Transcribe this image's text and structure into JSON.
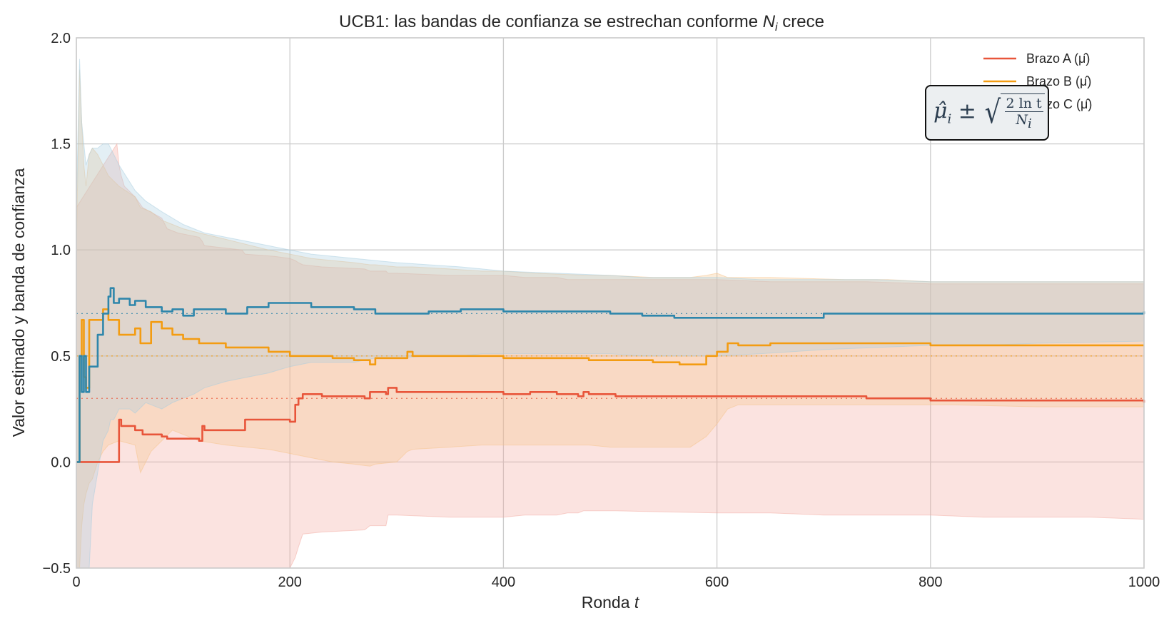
{
  "chart_data": {
    "type": "line",
    "title": "UCB1: las bandas de confianza se estrechan conforme N_i crece",
    "title_parts": {
      "prefix": "UCB1: las bandas de confianza se estrechan conforme ",
      "var": "N",
      "sub": "i",
      "suffix": " crece"
    },
    "xlabel": "Ronda t",
    "xlabel_parts": {
      "prefix": "Ronda ",
      "var": "t"
    },
    "ylabel": "Valor estimado y banda de confianza",
    "xlim": [
      0,
      1000
    ],
    "ylim": [
      -0.5,
      2.0
    ],
    "xticks": [
      "0",
      "200",
      "400",
      "600",
      "800",
      "1000"
    ],
    "yticks": [
      "−0.5",
      "0.0",
      "0.5",
      "1.0",
      "1.5",
      "2.0"
    ],
    "grid": true,
    "legend_position": "upper right",
    "annotation": "μ̂_i ± sqrt(2 ln t / N_i)",
    "true_means": [
      {
        "name": "Brazo A",
        "value": 0.3,
        "color": "#e8553a"
      },
      {
        "name": "Brazo B",
        "value": 0.5,
        "color": "#f39c12"
      },
      {
        "name": "Brazo C",
        "value": 0.7,
        "color": "#2e86ab"
      }
    ],
    "series": [
      {
        "name": "Brazo A (μ̂)",
        "color": "#e8553a",
        "band_color": "#f4a9a0",
        "x": [
          0,
          38,
          40,
          42,
          45,
          55,
          62,
          80,
          85,
          95,
          115,
          118,
          120,
          155,
          158,
          185,
          200,
          205,
          208,
          212,
          230,
          270,
          275,
          290,
          292,
          300,
          350,
          400,
          420,
          425,
          450,
          460,
          470,
          475,
          480,
          505,
          600,
          650,
          700,
          740,
          800,
          850,
          900,
          950,
          1000
        ],
        "values": [
          0.0,
          0.0,
          0.2,
          0.17,
          0.17,
          0.15,
          0.13,
          0.12,
          0.11,
          0.11,
          0.1,
          0.17,
          0.15,
          0.15,
          0.2,
          0.2,
          0.19,
          0.27,
          0.3,
          0.32,
          0.31,
          0.3,
          0.33,
          0.32,
          0.35,
          0.33,
          0.33,
          0.32,
          0.32,
          0.33,
          0.32,
          0.32,
          0.31,
          0.33,
          0.32,
          0.31,
          0.31,
          0.31,
          0.31,
          0.3,
          0.29,
          0.29,
          0.29,
          0.29,
          0.28
        ],
        "upper": [
          1.2,
          1.5,
          1.4,
          1.35,
          1.3,
          1.25,
          1.2,
          1.15,
          1.1,
          1.08,
          1.06,
          1.04,
          1.02,
          1.0,
          0.98,
          0.97,
          0.96,
          0.95,
          0.94,
          0.93,
          0.92,
          0.91,
          0.9,
          0.9,
          0.89,
          0.89,
          0.88,
          0.88,
          0.87,
          0.87,
          0.87,
          0.86,
          0.86,
          0.86,
          0.86,
          0.86,
          0.86,
          0.85,
          0.85,
          0.85,
          0.84,
          0.84,
          0.84,
          0.84,
          0.84
        ],
        "lower": [
          -0.5,
          -0.5,
          -0.5,
          -0.5,
          -0.5,
          -0.5,
          -0.5,
          -0.5,
          -0.5,
          -0.5,
          -0.5,
          -0.5,
          -0.5,
          -0.5,
          -0.5,
          -0.5,
          -0.5,
          -0.45,
          -0.4,
          -0.34,
          -0.33,
          -0.32,
          -0.3,
          -0.3,
          -0.25,
          -0.25,
          -0.26,
          -0.26,
          -0.25,
          -0.25,
          -0.25,
          -0.24,
          -0.24,
          -0.23,
          -0.23,
          -0.23,
          -0.24,
          -0.24,
          -0.25,
          -0.25,
          -0.25,
          -0.26,
          -0.26,
          -0.26,
          -0.27
        ]
      },
      {
        "name": "Brazo B (μ̂)",
        "color": "#f39c12",
        "band_color": "#f7c48a",
        "x": [
          0,
          3,
          5,
          7,
          9,
          12,
          15,
          20,
          25,
          30,
          40,
          55,
          60,
          70,
          80,
          90,
          100,
          115,
          140,
          180,
          200,
          220,
          240,
          260,
          275,
          280,
          300,
          310,
          315,
          350,
          380,
          400,
          430,
          480,
          500,
          540,
          565,
          575,
          590,
          600,
          610,
          620,
          650,
          720,
          740,
          760,
          800,
          820,
          900,
          1000
        ],
        "values": [
          0.0,
          0.5,
          0.67,
          0.4,
          0.35,
          0.67,
          0.67,
          0.67,
          0.72,
          0.67,
          0.6,
          0.63,
          0.56,
          0.66,
          0.63,
          0.6,
          0.58,
          0.56,
          0.54,
          0.52,
          0.5,
          0.5,
          0.49,
          0.48,
          0.46,
          0.49,
          0.49,
          0.52,
          0.5,
          0.5,
          0.5,
          0.49,
          0.49,
          0.48,
          0.48,
          0.47,
          0.46,
          0.46,
          0.5,
          0.52,
          0.56,
          0.55,
          0.56,
          0.56,
          0.56,
          0.56,
          0.55,
          0.55,
          0.55,
          0.55
        ],
        "upper": [
          1.0,
          1.85,
          1.6,
          1.4,
          1.3,
          1.45,
          1.48,
          1.45,
          1.4,
          1.35,
          1.3,
          1.25,
          1.2,
          1.18,
          1.14,
          1.12,
          1.1,
          1.08,
          1.05,
          1.0,
          0.98,
          0.96,
          0.95,
          0.94,
          0.93,
          0.93,
          0.92,
          0.92,
          0.92,
          0.91,
          0.9,
          0.9,
          0.89,
          0.88,
          0.88,
          0.87,
          0.87,
          0.87,
          0.88,
          0.89,
          0.87,
          0.87,
          0.87,
          0.86,
          0.86,
          0.86,
          0.85,
          0.85,
          0.85,
          0.85
        ],
        "lower": [
          -0.5,
          -0.5,
          -0.3,
          -0.2,
          -0.15,
          -0.1,
          -0.08,
          0.0,
          0.05,
          0.08,
          0.1,
          0.08,
          -0.05,
          0.05,
          0.1,
          0.15,
          0.13,
          0.1,
          0.08,
          0.06,
          0.04,
          0.02,
          0.0,
          -0.01,
          -0.02,
          -0.01,
          0.0,
          0.05,
          0.06,
          0.07,
          0.08,
          0.08,
          0.08,
          0.08,
          0.07,
          0.07,
          0.07,
          0.07,
          0.12,
          0.18,
          0.25,
          0.27,
          0.27,
          0.27,
          0.27,
          0.27,
          0.27,
          0.27,
          0.26,
          0.26
        ]
      },
      {
        "name": "Brazo C (μ̂)",
        "color": "#2e86ab",
        "band_color": "#a8cde0",
        "x": [
          0,
          3,
          5,
          7,
          9,
          12,
          15,
          20,
          25,
          30,
          32,
          35,
          40,
          50,
          55,
          65,
          80,
          90,
          100,
          110,
          120,
          140,
          160,
          180,
          200,
          220,
          260,
          280,
          300,
          330,
          360,
          380,
          400,
          450,
          500,
          530,
          560,
          600,
          640,
          700,
          750,
          800,
          850,
          900,
          1000
        ],
        "values": [
          0.0,
          0.5,
          0.33,
          0.5,
          0.33,
          0.45,
          0.45,
          0.6,
          0.7,
          0.78,
          0.82,
          0.75,
          0.77,
          0.74,
          0.76,
          0.73,
          0.71,
          0.72,
          0.69,
          0.72,
          0.72,
          0.7,
          0.73,
          0.75,
          0.75,
          0.73,
          0.72,
          0.7,
          0.7,
          0.71,
          0.72,
          0.72,
          0.71,
          0.71,
          0.7,
          0.69,
          0.68,
          0.68,
          0.68,
          0.7,
          0.7,
          0.7,
          0.7,
          0.7,
          0.71
        ],
        "upper": [
          1.2,
          1.9,
          1.6,
          1.5,
          1.4,
          1.45,
          1.48,
          1.48,
          1.5,
          1.5,
          1.48,
          1.45,
          1.4,
          1.32,
          1.28,
          1.23,
          1.18,
          1.15,
          1.12,
          1.1,
          1.08,
          1.06,
          1.04,
          1.02,
          1.0,
          0.98,
          0.96,
          0.95,
          0.94,
          0.93,
          0.92,
          0.91,
          0.9,
          0.89,
          0.88,
          0.87,
          0.87,
          0.87,
          0.86,
          0.86,
          0.86,
          0.85,
          0.85,
          0.85,
          0.85
        ],
        "lower": [
          -0.5,
          -0.5,
          -0.5,
          -0.5,
          -0.5,
          -0.5,
          -0.2,
          -0.05,
          0.1,
          0.15,
          0.2,
          0.2,
          0.25,
          0.25,
          0.23,
          0.28,
          0.25,
          0.28,
          0.3,
          0.32,
          0.35,
          0.38,
          0.4,
          0.42,
          0.45,
          0.47,
          0.47,
          0.49,
          0.49,
          0.5,
          0.5,
          0.51,
          0.51,
          0.51,
          0.51,
          0.5,
          0.5,
          0.5,
          0.51,
          0.53,
          0.54,
          0.55,
          0.55,
          0.56,
          0.57
        ]
      }
    ]
  },
  "legend": {
    "items": [
      {
        "label": "Brazo A (μ̂)",
        "color": "#e8553a"
      },
      {
        "label": "Brazo B (μ̂)",
        "color": "#f39c12"
      },
      {
        "label": "Brazo C (μ̂)",
        "color": "#2e86ab"
      }
    ]
  },
  "annotation_box": {
    "mu": "μ̂",
    "sub": "i",
    "pm": " ± ",
    "sqrt": "√",
    "num": "2 ln t",
    "den_var": "N",
    "den_sub": "i"
  },
  "style": {
    "grid_color": "#cccccc",
    "axes_color": "#cccccc",
    "text_color": "#262626"
  }
}
